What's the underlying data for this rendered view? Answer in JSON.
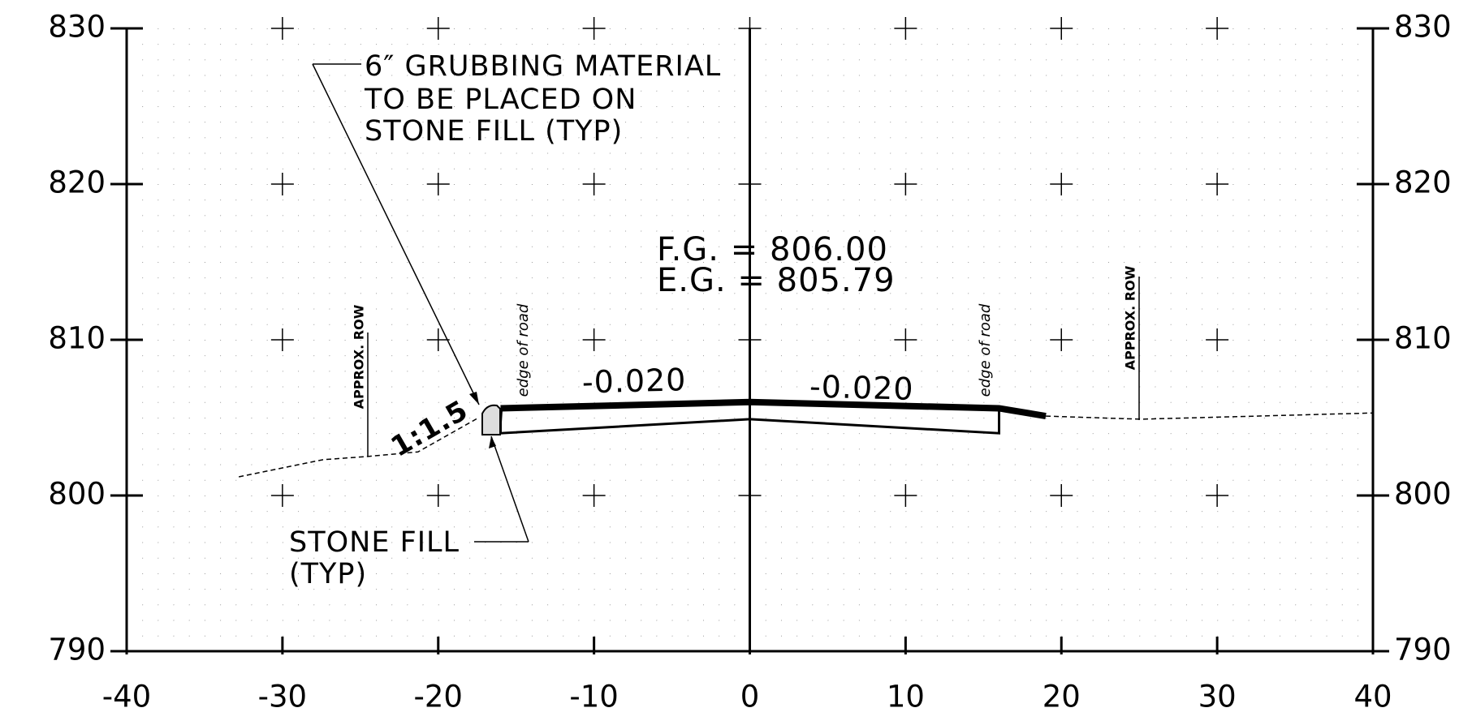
{
  "chart_data": {
    "type": "line",
    "xlim": [
      -40,
      40
    ],
    "ylim": [
      790,
      830
    ],
    "xticks": [
      -40,
      -30,
      -20,
      -10,
      0,
      10,
      20,
      30,
      40
    ],
    "yticks": [
      790,
      800,
      810,
      820,
      830
    ],
    "grid": true,
    "series": [
      {
        "style": "dashed",
        "x": [
          -32.8,
          -27.4,
          -24.6,
          -21.3,
          -17.4
        ],
        "values": [
          801.2,
          802.3,
          802.5,
          802.8,
          805.0
        ]
      },
      {
        "style": "dashed",
        "x": [
          19.0,
          25.1,
          40
        ],
        "values": [
          805.1,
          804.9,
          805.3
        ]
      },
      {
        "style": "thick",
        "x": [
          -16,
          0,
          16,
          19
        ],
        "values": [
          805.6,
          806.0,
          805.6,
          805.1
        ]
      },
      {
        "style": "thin",
        "x": [
          -16,
          -16,
          0,
          16,
          16
        ],
        "values": [
          805.6,
          804.0,
          804.9,
          804.0,
          805.6
        ]
      }
    ],
    "annotations": [
      "6″ GRUBBING MATERIAL",
      "TO BE PLACED ON",
      "STONE FILL (TYP)",
      "STONE FILL",
      "(TYP)",
      "F.G. = 806.00",
      "E.G. = 805.79",
      "-0.020",
      "-0.020",
      "1:1.5",
      "edge of road",
      "edge of road",
      "APPROX. ROW",
      "APPROX. ROW"
    ]
  }
}
